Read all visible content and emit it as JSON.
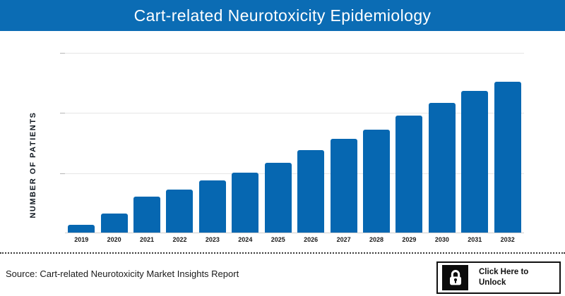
{
  "header": {
    "title": "Cart-related Neurotoxicity Epidemiology",
    "bg_color": "#0b6cb4",
    "text_color": "#ffffff"
  },
  "chart_data": {
    "type": "bar",
    "title": "Cart-related Neurotoxicity Epidemiology",
    "categories": [
      "2019",
      "2020",
      "2021",
      "2022",
      "2023",
      "2024",
      "2025",
      "2026",
      "2027",
      "2028",
      "2029",
      "2030",
      "2031",
      "2032"
    ],
    "values": [
      4.2,
      10.7,
      20.1,
      24.0,
      29.2,
      33.5,
      38.7,
      45.7,
      52.0,
      57.1,
      65.3,
      72.3,
      79.0,
      84.0
    ],
    "value_scale": "percent of y-axis maximum; actual patient counts are hidden (locked) in the source figure",
    "xlabel": "",
    "ylabel": "NUMBER OF PATIENTS",
    "ylim": [
      0,
      100
    ],
    "grid": "3 light horizontal gridlines (unlabeled) plus baseline; no y tick labels shown",
    "legend": "none",
    "bar_color": "#0667b1"
  },
  "footer": {
    "source": "Source: Cart-related Neurotoxicity Market Insights Report",
    "unlock_label": "Click Here to Unlock",
    "lock_icon": "padlock-icon",
    "divider_style": "dotted"
  }
}
